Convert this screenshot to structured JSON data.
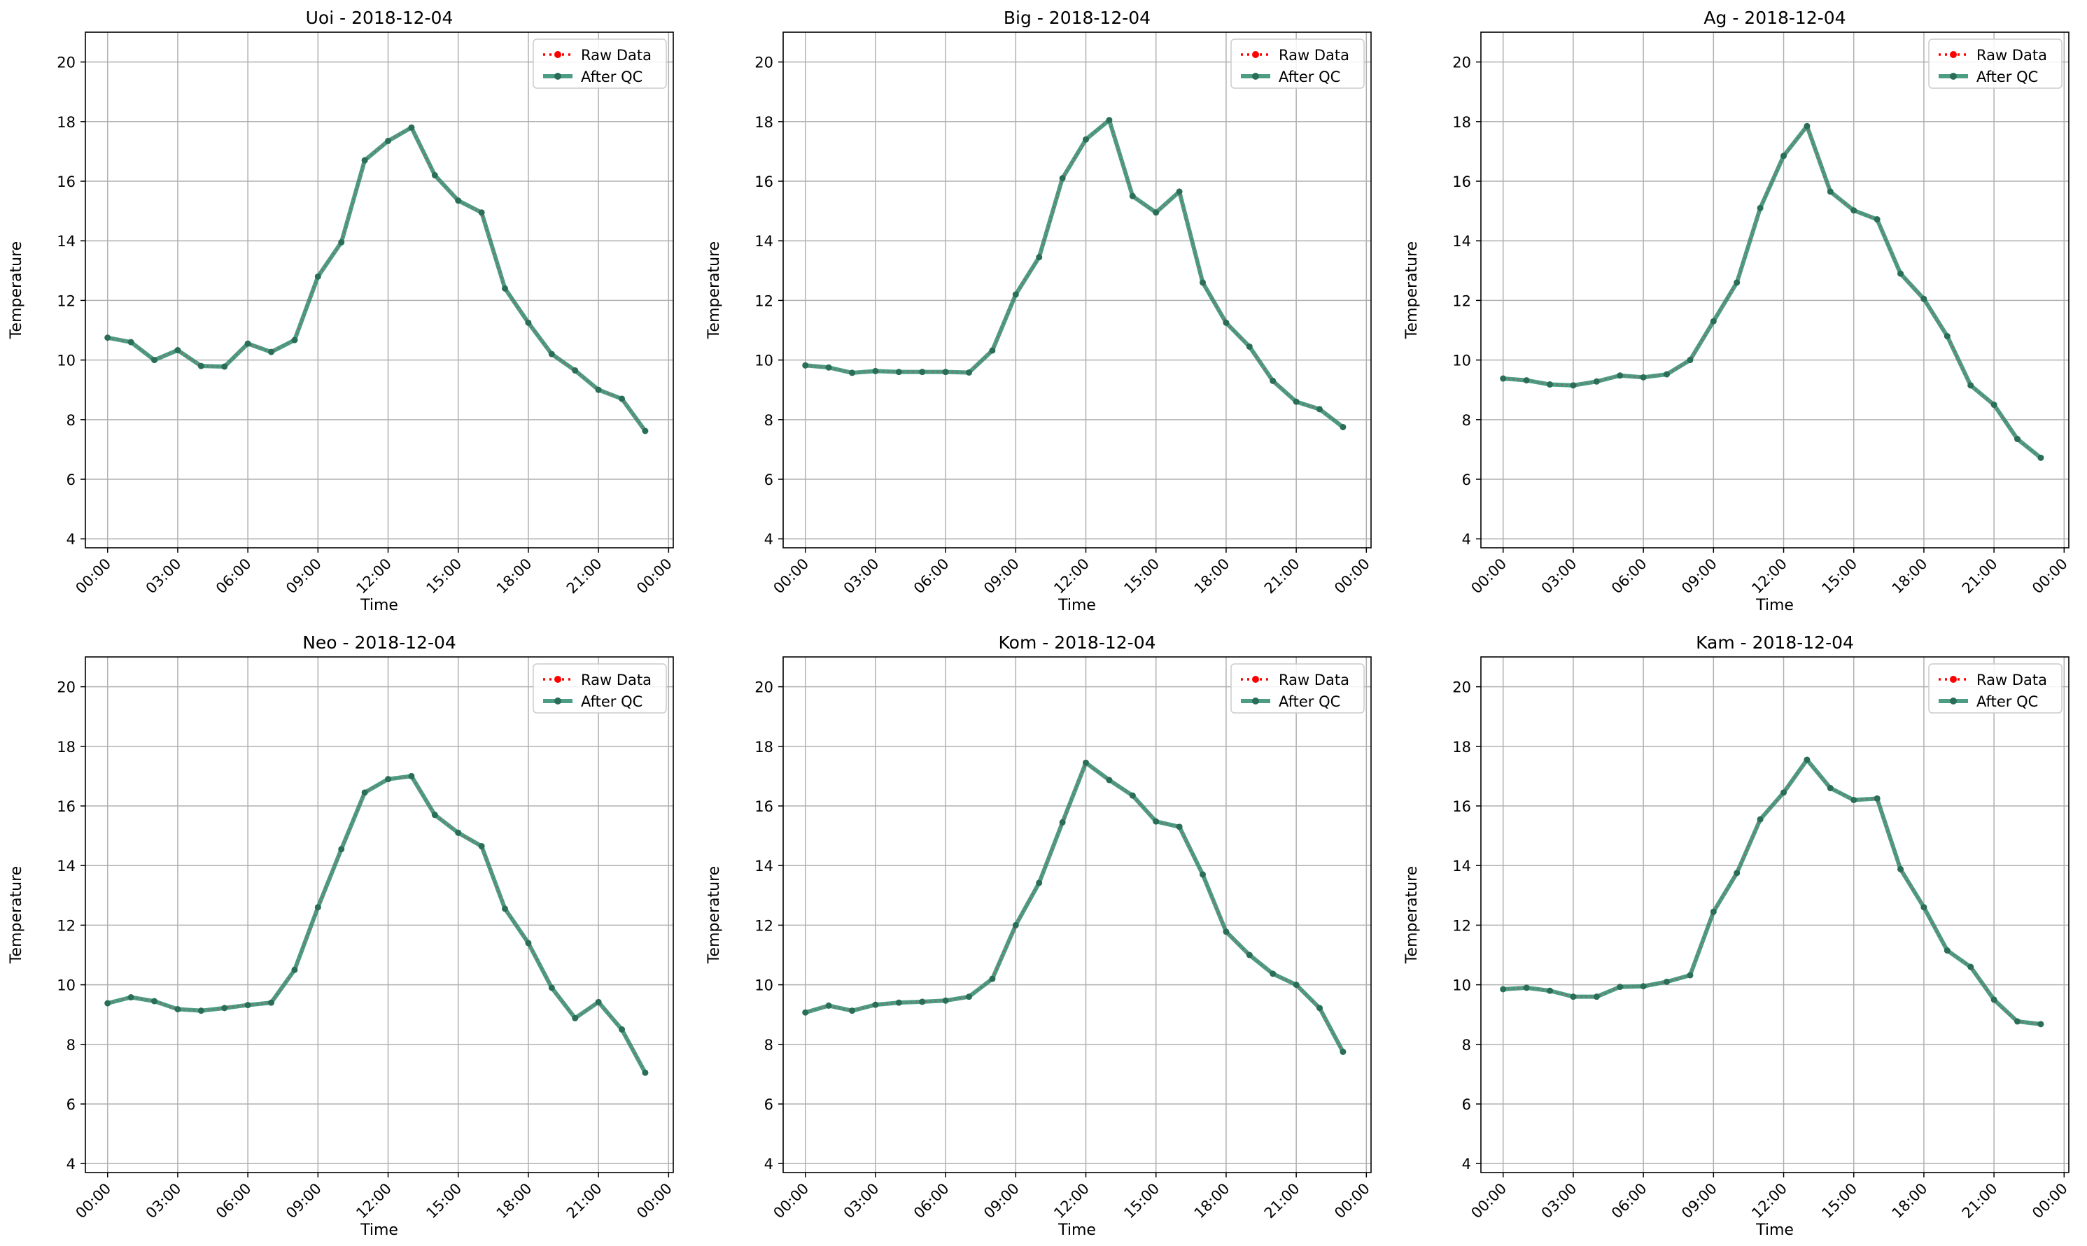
{
  "figure": {
    "common": {
      "xlabel": "Time",
      "ylabel": "Temperature",
      "yticks": [
        4,
        6,
        8,
        10,
        12,
        14,
        16,
        18,
        20
      ],
      "ylim": [
        3.7,
        21.0
      ],
      "xticks": [
        "00:00",
        "03:00",
        "06:00",
        "09:00",
        "12:00",
        "15:00",
        "18:00",
        "21:00",
        "00:00"
      ],
      "xlim_hours": [
        -0.95,
        24.2
      ],
      "grid": true,
      "legend": {
        "position": "top-right",
        "entries": [
          {
            "label": "Raw Data",
            "style": "dotted-red-markers"
          },
          {
            "label": "After QC",
            "style": "solid-teal-markers"
          }
        ]
      }
    },
    "colors": {
      "raw": "#ff0000",
      "qc": "#2e8b6e",
      "grid": "#b0b0b0",
      "axis": "#000000"
    }
  },
  "chart_data": [
    {
      "type": "line",
      "title": "Uoi - 2018-12-04",
      "xlabel": "Time",
      "ylabel": "Temperature",
      "ylim": [
        3.7,
        21.0
      ],
      "x_hours": [
        0,
        1,
        2,
        3,
        4,
        5,
        6,
        7,
        8,
        9,
        10,
        11,
        12,
        13,
        14,
        15,
        16,
        17,
        18,
        19,
        20,
        21,
        22,
        23
      ],
      "series": [
        {
          "name": "Raw Data",
          "values": [
            10.75,
            10.6,
            10.0,
            10.33,
            9.8,
            9.78,
            10.55,
            10.27,
            10.67,
            12.8,
            13.95,
            16.7,
            17.35,
            17.8,
            16.2,
            15.35,
            14.95,
            12.4,
            11.25,
            10.2,
            9.65,
            9.0,
            8.7,
            7.62
          ]
        },
        {
          "name": "After QC",
          "values": [
            10.75,
            10.6,
            10.0,
            10.33,
            9.8,
            9.78,
            10.55,
            10.27,
            10.67,
            12.8,
            13.95,
            16.7,
            17.35,
            17.8,
            16.2,
            15.35,
            14.95,
            12.4,
            11.25,
            10.2,
            9.65,
            9.0,
            8.7,
            7.62
          ]
        }
      ]
    },
    {
      "type": "line",
      "title": "Big - 2018-12-04",
      "xlabel": "Time",
      "ylabel": "Temperature",
      "ylim": [
        3.7,
        21.0
      ],
      "x_hours": [
        0,
        1,
        2,
        3,
        4,
        5,
        6,
        7,
        8,
        9,
        10,
        11,
        12,
        13,
        14,
        15,
        16,
        17,
        18,
        19,
        20,
        21,
        22,
        23
      ],
      "series": [
        {
          "name": "Raw Data",
          "values": [
            9.82,
            9.75,
            9.57,
            9.63,
            9.6,
            9.6,
            9.6,
            9.58,
            10.32,
            12.2,
            13.45,
            16.1,
            17.4,
            18.05,
            15.5,
            14.95,
            15.65,
            12.6,
            11.25,
            10.45,
            9.3,
            8.6,
            8.35,
            7.75
          ]
        },
        {
          "name": "After QC",
          "values": [
            9.82,
            9.75,
            9.57,
            9.63,
            9.6,
            9.6,
            9.6,
            9.58,
            10.32,
            12.2,
            13.45,
            16.1,
            17.4,
            18.05,
            15.5,
            14.95,
            15.65,
            12.6,
            11.25,
            10.45,
            9.3,
            8.6,
            8.35,
            7.75
          ]
        }
      ]
    },
    {
      "type": "line",
      "title": "Ag - 2018-12-04",
      "xlabel": "Time",
      "ylabel": "Temperature",
      "ylim": [
        3.7,
        21.0
      ],
      "x_hours": [
        0,
        1,
        2,
        3,
        4,
        5,
        6,
        7,
        8,
        9,
        10,
        11,
        12,
        13,
        14,
        15,
        16,
        17,
        18,
        19,
        20,
        21,
        22,
        23
      ],
      "series": [
        {
          "name": "Raw Data",
          "values": [
            9.38,
            9.32,
            9.18,
            9.15,
            9.28,
            9.48,
            9.42,
            9.52,
            10.0,
            11.3,
            12.6,
            15.1,
            16.85,
            17.85,
            15.65,
            15.02,
            14.72,
            12.9,
            12.05,
            10.8,
            9.15,
            8.5,
            7.35,
            6.72
          ]
        },
        {
          "name": "After QC",
          "values": [
            9.38,
            9.32,
            9.18,
            9.15,
            9.28,
            9.48,
            9.42,
            9.52,
            10.0,
            11.3,
            12.6,
            15.1,
            16.85,
            17.85,
            15.65,
            15.02,
            14.72,
            12.9,
            12.05,
            10.8,
            9.15,
            8.5,
            7.35,
            6.72
          ]
        }
      ]
    },
    {
      "type": "line",
      "title": "Neo - 2018-12-04",
      "xlabel": "Time",
      "ylabel": "Temperature",
      "ylim": [
        3.7,
        21.0
      ],
      "x_hours": [
        0,
        1,
        2,
        3,
        4,
        5,
        6,
        7,
        8,
        9,
        10,
        11,
        12,
        13,
        14,
        15,
        16,
        17,
        18,
        19,
        20,
        21,
        22,
        23
      ],
      "series": [
        {
          "name": "Raw Data",
          "values": [
            9.38,
            9.58,
            9.45,
            9.18,
            9.13,
            9.22,
            9.32,
            9.4,
            10.5,
            12.6,
            14.55,
            16.45,
            16.9,
            17.0,
            15.7,
            15.1,
            14.65,
            12.55,
            11.4,
            9.9,
            8.88,
            9.42,
            8.5,
            7.05
          ]
        },
        {
          "name": "After QC",
          "values": [
            9.38,
            9.58,
            9.45,
            9.18,
            9.13,
            9.22,
            9.32,
            9.4,
            10.5,
            12.6,
            14.55,
            16.45,
            16.9,
            17.0,
            15.7,
            15.1,
            14.65,
            12.55,
            11.4,
            9.9,
            8.88,
            9.42,
            8.5,
            7.05
          ]
        }
      ]
    },
    {
      "type": "line",
      "title": "Kom - 2018-12-04",
      "xlabel": "Time",
      "ylabel": "Temperature",
      "ylim": [
        3.7,
        21.0
      ],
      "x_hours": [
        0,
        1,
        2,
        3,
        4,
        5,
        6,
        7,
        8,
        9,
        10,
        11,
        12,
        13,
        14,
        15,
        16,
        17,
        18,
        19,
        20,
        21,
        22,
        23
      ],
      "series": [
        {
          "name": "Raw Data",
          "values": [
            9.07,
            9.3,
            9.13,
            9.33,
            9.4,
            9.43,
            9.47,
            9.6,
            10.2,
            12.0,
            13.42,
            15.45,
            17.45,
            16.87,
            16.35,
            15.48,
            15.3,
            13.7,
            11.78,
            11.0,
            10.37,
            10.0,
            9.22,
            7.75
          ]
        },
        {
          "name": "After QC",
          "values": [
            9.07,
            9.3,
            9.13,
            9.33,
            9.4,
            9.43,
            9.47,
            9.6,
            10.2,
            12.0,
            13.42,
            15.45,
            17.45,
            16.87,
            16.35,
            15.48,
            15.3,
            13.7,
            11.78,
            11.0,
            10.37,
            10.0,
            9.22,
            7.75
          ]
        }
      ]
    },
    {
      "type": "line",
      "title": "Kam - 2018-12-04",
      "xlabel": "Time",
      "ylabel": "Temperature",
      "ylim": [
        3.7,
        21.0
      ],
      "x_hours": [
        0,
        1,
        2,
        3,
        4,
        5,
        6,
        7,
        8,
        9,
        10,
        11,
        12,
        13,
        14,
        15,
        16,
        17,
        18,
        19,
        20,
        21,
        22,
        23
      ],
      "series": [
        {
          "name": "Raw Data",
          "values": [
            9.85,
            9.9,
            9.8,
            9.6,
            9.6,
            9.93,
            9.95,
            10.1,
            10.32,
            12.45,
            13.75,
            15.55,
            16.45,
            17.55,
            16.6,
            16.2,
            16.25,
            13.88,
            12.6,
            11.15,
            10.6,
            9.5,
            8.77,
            8.68
          ]
        },
        {
          "name": "After QC",
          "values": [
            9.85,
            9.9,
            9.8,
            9.6,
            9.6,
            9.93,
            9.95,
            10.1,
            10.32,
            12.45,
            13.75,
            15.55,
            16.45,
            17.55,
            16.6,
            16.2,
            16.25,
            13.88,
            12.6,
            11.15,
            10.6,
            9.5,
            8.77,
            8.68
          ]
        }
      ]
    }
  ]
}
